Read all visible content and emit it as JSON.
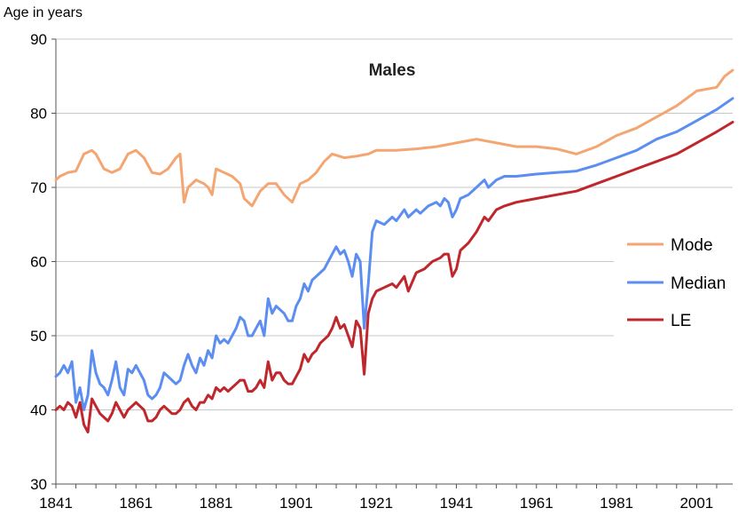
{
  "chart_data": {
    "type": "line",
    "title": "Males",
    "xlabel": "",
    "ylabel": "Age in years",
    "xlim": [
      1841,
      2010
    ],
    "ylim": [
      30,
      90
    ],
    "yticks": [
      30,
      40,
      50,
      60,
      70,
      80,
      90
    ],
    "xticks": [
      1841,
      1861,
      1881,
      1901,
      1921,
      1941,
      1961,
      1981,
      2001
    ],
    "grid": "horizontal",
    "legend_position": "right",
    "series": [
      {
        "name": "Mode",
        "color": "#f4a672",
        "points": [
          [
            1841,
            71
          ],
          [
            1842,
            71.5
          ],
          [
            1844,
            72
          ],
          [
            1846,
            72.2
          ],
          [
            1848,
            74.5
          ],
          [
            1850,
            75
          ],
          [
            1851,
            74.5
          ],
          [
            1853,
            72.5
          ],
          [
            1855,
            72
          ],
          [
            1857,
            72.5
          ],
          [
            1859,
            74.5
          ],
          [
            1861,
            75
          ],
          [
            1863,
            74
          ],
          [
            1865,
            72
          ],
          [
            1867,
            71.8
          ],
          [
            1869,
            72.5
          ],
          [
            1871,
            74
          ],
          [
            1872,
            74.5
          ],
          [
            1873,
            68
          ],
          [
            1874,
            70
          ],
          [
            1876,
            71
          ],
          [
            1878,
            70.5
          ],
          [
            1879,
            70
          ],
          [
            1880,
            69
          ],
          [
            1881,
            72.5
          ],
          [
            1883,
            72
          ],
          [
            1885,
            71.5
          ],
          [
            1887,
            70.5
          ],
          [
            1888,
            68.5
          ],
          [
            1890,
            67.5
          ],
          [
            1892,
            69.5
          ],
          [
            1894,
            70.5
          ],
          [
            1896,
            70.5
          ],
          [
            1898,
            69
          ],
          [
            1900,
            68
          ],
          [
            1902,
            70.5
          ],
          [
            1904,
            71
          ],
          [
            1906,
            72
          ],
          [
            1908,
            73.5
          ],
          [
            1910,
            74.5
          ],
          [
            1913,
            74
          ],
          [
            1916,
            74.2
          ],
          [
            1919,
            74.5
          ],
          [
            1921,
            75
          ],
          [
            1926,
            75
          ],
          [
            1931,
            75.2
          ],
          [
            1936,
            75.5
          ],
          [
            1941,
            76
          ],
          [
            1946,
            76.5
          ],
          [
            1951,
            76
          ],
          [
            1956,
            75.5
          ],
          [
            1961,
            75.5
          ],
          [
            1966,
            75.2
          ],
          [
            1971,
            74.5
          ],
          [
            1976,
            75.5
          ],
          [
            1981,
            77
          ],
          [
            1986,
            78
          ],
          [
            1991,
            79.5
          ],
          [
            1996,
            81
          ],
          [
            2001,
            83
          ],
          [
            2006,
            83.5
          ],
          [
            2008,
            85
          ],
          [
            2010,
            85.8
          ]
        ]
      },
      {
        "name": "Median",
        "color": "#5b8ef0",
        "points": [
          [
            1841,
            44.5
          ],
          [
            1842,
            45
          ],
          [
            1843,
            46
          ],
          [
            1844,
            45
          ],
          [
            1845,
            46.5
          ],
          [
            1846,
            41
          ],
          [
            1847,
            43
          ],
          [
            1848,
            40
          ],
          [
            1849,
            42
          ],
          [
            1850,
            48
          ],
          [
            1851,
            45
          ],
          [
            1852,
            43.5
          ],
          [
            1853,
            43
          ],
          [
            1854,
            42
          ],
          [
            1855,
            44
          ],
          [
            1856,
            46.5
          ],
          [
            1857,
            43
          ],
          [
            1858,
            42
          ],
          [
            1859,
            45.5
          ],
          [
            1860,
            45
          ],
          [
            1861,
            46
          ],
          [
            1862,
            45
          ],
          [
            1863,
            44
          ],
          [
            1864,
            42
          ],
          [
            1865,
            41.5
          ],
          [
            1866,
            42
          ],
          [
            1867,
            43
          ],
          [
            1868,
            45
          ],
          [
            1869,
            44.5
          ],
          [
            1870,
            44
          ],
          [
            1871,
            43.5
          ],
          [
            1872,
            44
          ],
          [
            1873,
            46
          ],
          [
            1874,
            47.5
          ],
          [
            1875,
            46
          ],
          [
            1876,
            45
          ],
          [
            1877,
            47
          ],
          [
            1878,
            46
          ],
          [
            1879,
            48
          ],
          [
            1880,
            47
          ],
          [
            1881,
            50
          ],
          [
            1882,
            49
          ],
          [
            1883,
            49.5
          ],
          [
            1884,
            49
          ],
          [
            1885,
            50
          ],
          [
            1886,
            51
          ],
          [
            1887,
            52.5
          ],
          [
            1888,
            52
          ],
          [
            1889,
            50
          ],
          [
            1890,
            50
          ],
          [
            1891,
            51
          ],
          [
            1892,
            52
          ],
          [
            1893,
            50
          ],
          [
            1894,
            55
          ],
          [
            1895,
            53
          ],
          [
            1896,
            54
          ],
          [
            1897,
            53.5
          ],
          [
            1898,
            53
          ],
          [
            1899,
            52
          ],
          [
            1900,
            52
          ],
          [
            1901,
            54
          ],
          [
            1902,
            55
          ],
          [
            1903,
            57
          ],
          [
            1904,
            56
          ],
          [
            1905,
            57.5
          ],
          [
            1906,
            58
          ],
          [
            1907,
            58.5
          ],
          [
            1908,
            59
          ],
          [
            1909,
            60
          ],
          [
            1910,
            61
          ],
          [
            1911,
            62
          ],
          [
            1912,
            61
          ],
          [
            1913,
            61.5
          ],
          [
            1914,
            60
          ],
          [
            1915,
            58
          ],
          [
            1916,
            61
          ],
          [
            1917,
            60
          ],
          [
            1918,
            51
          ],
          [
            1919,
            57
          ],
          [
            1920,
            64
          ],
          [
            1921,
            65.5
          ],
          [
            1923,
            65
          ],
          [
            1925,
            66
          ],
          [
            1926,
            65.5
          ],
          [
            1928,
            67
          ],
          [
            1929,
            66
          ],
          [
            1931,
            67
          ],
          [
            1932,
            66.5
          ],
          [
            1934,
            67.5
          ],
          [
            1936,
            68
          ],
          [
            1937,
            67.5
          ],
          [
            1938,
            68.5
          ],
          [
            1939,
            68
          ],
          [
            1940,
            66
          ],
          [
            1941,
            67
          ],
          [
            1942,
            68.5
          ],
          [
            1944,
            69
          ],
          [
            1946,
            70
          ],
          [
            1947,
            70.5
          ],
          [
            1948,
            71
          ],
          [
            1949,
            70
          ],
          [
            1951,
            71
          ],
          [
            1953,
            71.5
          ],
          [
            1956,
            71.5
          ],
          [
            1961,
            71.8
          ],
          [
            1966,
            72
          ],
          [
            1971,
            72.2
          ],
          [
            1976,
            73
          ],
          [
            1981,
            74
          ],
          [
            1986,
            75
          ],
          [
            1991,
            76.5
          ],
          [
            1996,
            77.5
          ],
          [
            2001,
            79
          ],
          [
            2006,
            80.5
          ],
          [
            2010,
            82
          ]
        ]
      },
      {
        "name": "LE",
        "color": "#c0272d",
        "points": [
          [
            1841,
            40
          ],
          [
            1842,
            40.5
          ],
          [
            1843,
            40
          ],
          [
            1844,
            41
          ],
          [
            1845,
            40.5
          ],
          [
            1846,
            39
          ],
          [
            1847,
            41
          ],
          [
            1848,
            38
          ],
          [
            1849,
            37
          ],
          [
            1850,
            41.5
          ],
          [
            1851,
            40.5
          ],
          [
            1852,
            39.5
          ],
          [
            1853,
            39
          ],
          [
            1854,
            38.5
          ],
          [
            1855,
            39.5
          ],
          [
            1856,
            41
          ],
          [
            1857,
            40
          ],
          [
            1858,
            39
          ],
          [
            1859,
            40
          ],
          [
            1860,
            40.5
          ],
          [
            1861,
            41
          ],
          [
            1862,
            40.5
          ],
          [
            1863,
            40
          ],
          [
            1864,
            38.5
          ],
          [
            1865,
            38.5
          ],
          [
            1866,
            39
          ],
          [
            1867,
            40
          ],
          [
            1868,
            40.5
          ],
          [
            1869,
            40
          ],
          [
            1870,
            39.5
          ],
          [
            1871,
            39.5
          ],
          [
            1872,
            40
          ],
          [
            1873,
            41
          ],
          [
            1874,
            41.5
          ],
          [
            1875,
            40.5
          ],
          [
            1876,
            40
          ],
          [
            1877,
            41
          ],
          [
            1878,
            41
          ],
          [
            1879,
            42
          ],
          [
            1880,
            41.5
          ],
          [
            1881,
            43
          ],
          [
            1882,
            42.5
          ],
          [
            1883,
            43
          ],
          [
            1884,
            42.5
          ],
          [
            1885,
            43
          ],
          [
            1886,
            43.5
          ],
          [
            1887,
            44
          ],
          [
            1888,
            44
          ],
          [
            1889,
            42.5
          ],
          [
            1890,
            42.5
          ],
          [
            1891,
            43
          ],
          [
            1892,
            44
          ],
          [
            1893,
            43
          ],
          [
            1894,
            46.5
          ],
          [
            1895,
            44
          ],
          [
            1896,
            45
          ],
          [
            1897,
            45
          ],
          [
            1898,
            44
          ],
          [
            1899,
            43.5
          ],
          [
            1900,
            43.5
          ],
          [
            1901,
            44.5
          ],
          [
            1902,
            45.5
          ],
          [
            1903,
            47.5
          ],
          [
            1904,
            46.5
          ],
          [
            1905,
            47.5
          ],
          [
            1906,
            48
          ],
          [
            1907,
            49
          ],
          [
            1908,
            49.5
          ],
          [
            1909,
            50
          ],
          [
            1910,
            51
          ],
          [
            1911,
            52.5
          ],
          [
            1912,
            51
          ],
          [
            1913,
            51.5
          ],
          [
            1914,
            50
          ],
          [
            1915,
            48.5
          ],
          [
            1916,
            52
          ],
          [
            1917,
            51
          ],
          [
            1918,
            44.8
          ],
          [
            1919,
            53
          ],
          [
            1920,
            55
          ],
          [
            1921,
            56
          ],
          [
            1923,
            56.5
          ],
          [
            1925,
            57
          ],
          [
            1926,
            56.5
          ],
          [
            1928,
            58
          ],
          [
            1929,
            56
          ],
          [
            1931,
            58.5
          ],
          [
            1933,
            59
          ],
          [
            1935,
            60
          ],
          [
            1937,
            60.5
          ],
          [
            1938,
            61
          ],
          [
            1939,
            61
          ],
          [
            1940,
            58
          ],
          [
            1941,
            59
          ],
          [
            1942,
            61.5
          ],
          [
            1944,
            62.5
          ],
          [
            1946,
            64
          ],
          [
            1947,
            65
          ],
          [
            1948,
            66
          ],
          [
            1949,
            65.5
          ],
          [
            1951,
            67
          ],
          [
            1953,
            67.5
          ],
          [
            1956,
            68
          ],
          [
            1961,
            68.5
          ],
          [
            1966,
            69
          ],
          [
            1971,
            69.5
          ],
          [
            1976,
            70.5
          ],
          [
            1981,
            71.5
          ],
          [
            1986,
            72.5
          ],
          [
            1991,
            73.5
          ],
          [
            1996,
            74.5
          ],
          [
            2001,
            76
          ],
          [
            2006,
            77.5
          ],
          [
            2010,
            78.8
          ]
        ]
      }
    ]
  }
}
